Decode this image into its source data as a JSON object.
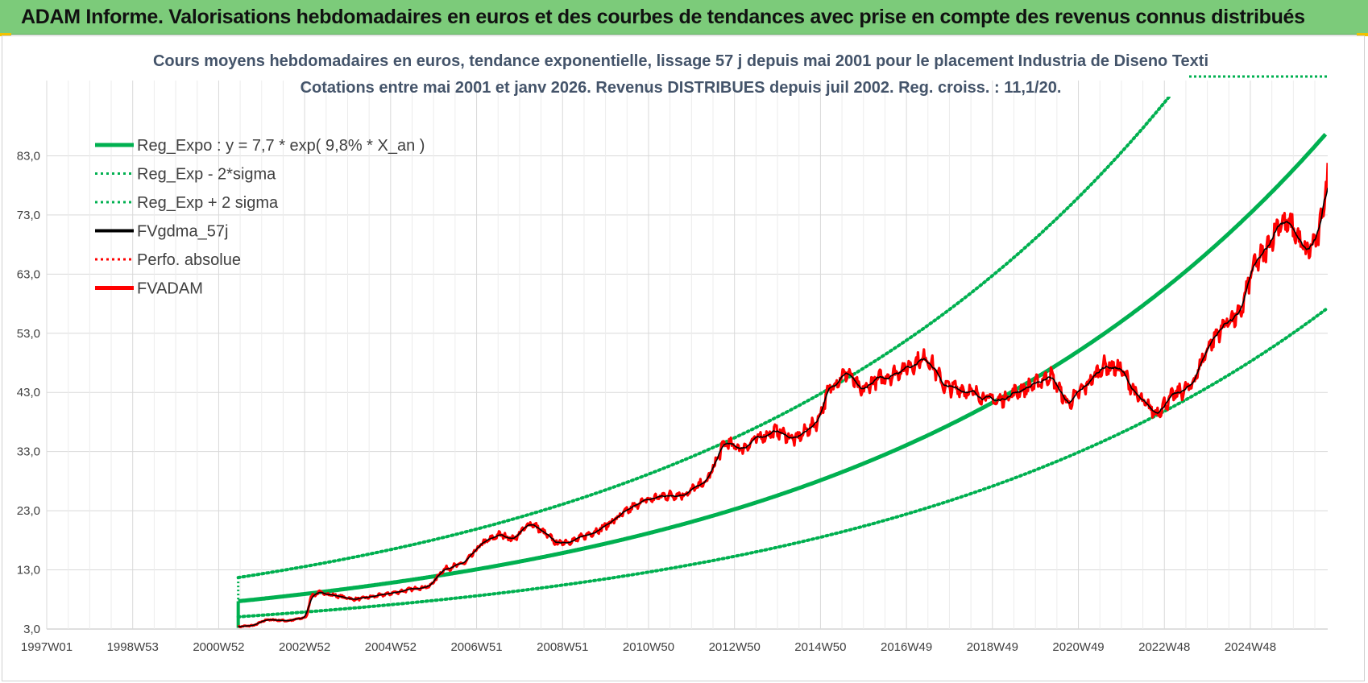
{
  "banner": {
    "title": "ADAM Informe. Valorisations hebdomadaires en euros et des courbes de tendances avec prise en compte des revenus connus distribués"
  },
  "colors": {
    "banner_bg": "#7ccb7a",
    "reg_expo": "#00b050",
    "fvgdma": "#000000",
    "fvadam": "#ff0000",
    "title_text": "#44546a"
  },
  "chart_data": {
    "type": "line",
    "title_line1": "Cours moyens hebdomadaires en euros, tendance exponentielle, lissage 57 j depuis mai 2001 pour le placement Industria de Diseno Texti",
    "title_line2": "Cotations entre mai 2001 et janv 2026. Revenus DISTRIBUES depuis juil 2002. Reg. croiss. : 11,1/20.",
    "x_tick_labels": [
      "1997W01",
      "1998W53",
      "2000W52",
      "2002W52",
      "2004W52",
      "2006W51",
      "2008W51",
      "2010W50",
      "2012W50",
      "2014W50",
      "2016W49",
      "2018W49",
      "2020W49",
      "2022W48",
      "2024W48"
    ],
    "x_range_years": [
      1997.0,
      2026.1
    ],
    "y_tick_labels": [
      "3,0",
      "13,0",
      "23,0",
      "33,0",
      "43,0",
      "53,0",
      "63,0",
      "73,0",
      "83,0"
    ],
    "ylim": [
      3,
      93
    ],
    "grid": true,
    "legend_position": "top-left",
    "regression": {
      "a": 7.7,
      "rate": 0.098,
      "x0_year": 2001.35
    },
    "sigma_factor": 1.52,
    "legend": [
      {
        "label": "Reg_Expo : y = 7,7 * exp( 9,8% *  X_an )",
        "style": "solid",
        "color": "#00b050"
      },
      {
        "label": "Reg_Exp - 2*sigma",
        "style": "dotted",
        "color": "#00b050"
      },
      {
        "label": "Reg_Exp + 2 sigma",
        "style": "dotted",
        "color": "#00b050"
      },
      {
        "label": "FVgdma_57j",
        "style": "solid-thin",
        "color": "#000000"
      },
      {
        "label": "Perfo. absolue",
        "style": "dotted",
        "color": "#ff0000"
      },
      {
        "label": "FVADAM",
        "style": "solid",
        "color": "#ff0000"
      }
    ],
    "series": [
      {
        "name": "FVADAM",
        "x": [
          2001.35,
          2001.7,
          2002.0,
          2002.5,
          2002.9,
          2003.0,
          2003.2,
          2003.6,
          2004.0,
          2004.5,
          2005.0,
          2005.4,
          2005.7,
          2006.0,
          2006.5,
          2006.9,
          2007.3,
          2007.6,
          2008.0,
          2008.6,
          2009.0,
          2009.6,
          2010.0,
          2010.5,
          2011.0,
          2011.5,
          2012.0,
          2012.4,
          2012.8,
          2013.2,
          2013.6,
          2014.0,
          2014.5,
          2014.8,
          2015.2,
          2015.5,
          2015.8,
          2016.2,
          2016.6,
          2017.0,
          2017.4,
          2017.8,
          2018.2,
          2018.6,
          2019.0,
          2019.5,
          2019.8,
          2020.2,
          2020.6,
          2021.0,
          2021.4,
          2021.8,
          2022.2,
          2022.6,
          2023.0,
          2023.4,
          2023.8,
          2024.1,
          2024.4,
          2024.7,
          2025.0,
          2025.3,
          2025.6,
          2025.9,
          2026.1
        ],
        "y": [
          3.4,
          3.6,
          4.6,
          4.4,
          5.0,
          8.5,
          9.2,
          8.6,
          8.0,
          8.6,
          9.3,
          9.9,
          10.2,
          13.0,
          14.2,
          17.5,
          19.0,
          18.2,
          21.0,
          17.5,
          18.0,
          20.0,
          22.0,
          24.5,
          25.5,
          25.8,
          28.0,
          34.5,
          33.5,
          35.5,
          36.5,
          35.0,
          38.0,
          44.0,
          46.5,
          43.0,
          45.0,
          46.0,
          47.5,
          49.0,
          44.0,
          43.5,
          42.5,
          41.5,
          43.0,
          44.5,
          46.0,
          41.0,
          44.0,
          47.5,
          47.0,
          42.0,
          39.5,
          42.5,
          44.0,
          51.0,
          55.0,
          56.0,
          64.0,
          67.0,
          72.0,
          71.0,
          66.5,
          69.5,
          79.5
        ]
      }
    ]
  }
}
